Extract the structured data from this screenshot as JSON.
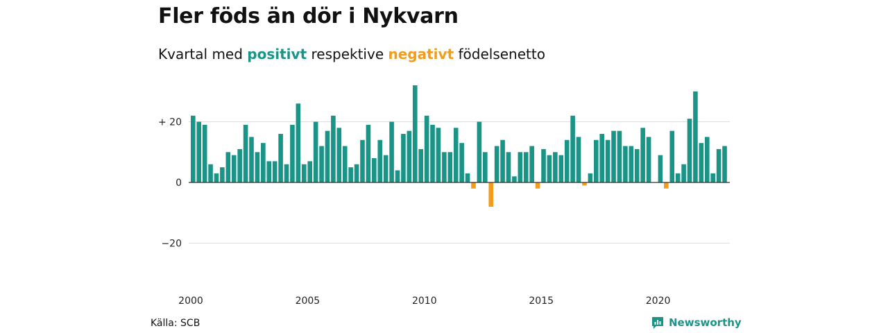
{
  "title": "Fler föds än dör i Nykvarn",
  "subtitle": {
    "prefix": "Kvartal med",
    "positive": "positivt",
    "middle": "respektive",
    "negative": "negativt",
    "suffix": "födelsenetto"
  },
  "source": "Källa: SCB",
  "brand": {
    "name": "Newsworthy",
    "icon": "bar-chart-speech-bubble-icon"
  },
  "colors": {
    "positive": "#1a9487",
    "negative": "#f19c1b",
    "grid": "#dddddd",
    "axis": "#333333"
  },
  "chart_data": {
    "type": "bar",
    "title": "Fler föds än dör i Nykvarn",
    "xlabel": "",
    "ylabel": "",
    "x_start": "2000 Q1",
    "x_tick_labels": [
      "2000",
      "2005",
      "2010",
      "2015",
      "2020"
    ],
    "y_ticks": [
      20,
      0,
      -20
    ],
    "y_tick_labels": [
      "+ 20",
      "0",
      "−20"
    ],
    "ylim": [
      -30,
      33
    ],
    "grid": true,
    "values": [
      22,
      20,
      19,
      6,
      3,
      5,
      10,
      9,
      11,
      19,
      15,
      10,
      13,
      7,
      7,
      16,
      6,
      19,
      26,
      6,
      7,
      20,
      12,
      17,
      22,
      18,
      12,
      5,
      6,
      14,
      19,
      8,
      14,
      9,
      20,
      4,
      16,
      17,
      32,
      11,
      22,
      19,
      18,
      10,
      10,
      18,
      13,
      3,
      -2,
      20,
      10,
      -8,
      12,
      14,
      10,
      2,
      10,
      10,
      12,
      -2,
      11,
      9,
      10,
      9,
      14,
      22,
      15,
      -1,
      3,
      14,
      16,
      14,
      17,
      17,
      12,
      12,
      11,
      18,
      15,
      0,
      9,
      -2,
      17,
      3,
      6,
      21,
      30,
      13,
      15,
      3,
      11,
      12
    ]
  }
}
